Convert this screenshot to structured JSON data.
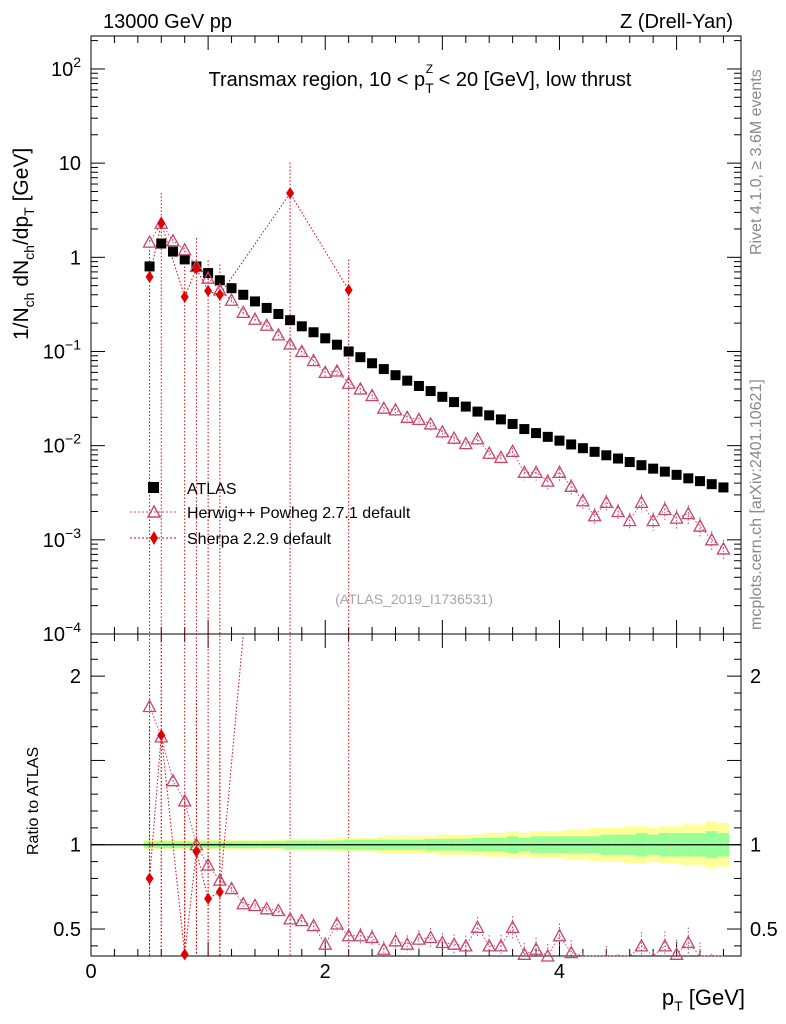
{
  "header": {
    "left": "13000 GeV pp",
    "right": "Z (Drell-Yan)"
  },
  "side_labels": {
    "rivet": "Rivet 4.1.0, ≥ 3.6M events",
    "mcplots": "mcplots.cern.ch [arXiv:2401.10621]"
  },
  "chart_data": {
    "type": "scatter",
    "title_parts": {
      "pre": "Transmax region, 10 < p",
      "sub": "T",
      "sup": "Z",
      "post": " < 20 [GeV], low thrust"
    },
    "xlabel": {
      "main": "p",
      "sub": "T",
      "unit": " [GeV]"
    },
    "ylabel": {
      "t1": "1/N",
      "s1": "ch",
      "t2": " dN",
      "s2": "ch",
      "t3": "/dp",
      "s3": "T",
      "t4": " [GeV]"
    },
    "ratio_ylabel": "Ratio to ATLAS",
    "watermark": "(ATLAS_2019_I1736531)",
    "xlim": [
      0,
      5.55
    ],
    "ylim_log10": [
      -4,
      2.35
    ],
    "ratio_ylim": [
      0.34,
      2.25
    ],
    "x_ticks": [
      {
        "v": 0,
        "label": "0"
      },
      {
        "v": 2,
        "label": "2"
      },
      {
        "v": 4,
        "label": "4"
      }
    ],
    "y_ticks": [
      {
        "e": 2,
        "base": "10",
        "exp": "2"
      },
      {
        "e": 1,
        "base": "10",
        "exp": ""
      },
      {
        "e": 0,
        "base": "1",
        "exp": ""
      },
      {
        "e": -1,
        "base": "10",
        "exp": "−1"
      },
      {
        "e": -2,
        "base": "10",
        "exp": "−2"
      },
      {
        "e": -3,
        "base": "10",
        "exp": "−3"
      },
      {
        "e": -4,
        "base": "10",
        "exp": "−4"
      }
    ],
    "ratio_ticks": [
      {
        "v": 0.5,
        "label": "0.5"
      },
      {
        "v": 1,
        "label": "1"
      },
      {
        "v": 2,
        "label": "2"
      }
    ],
    "legend": [
      {
        "name": "ATLAS",
        "color": "#000000",
        "marker": "square"
      },
      {
        "name": "Herwig++ Powheg 2.7.1 default",
        "color": "#c8456e",
        "marker": "triangle"
      },
      {
        "name": "Sherpa 2.2.9 default",
        "color": "#e00000",
        "marker": "diamond"
      }
    ],
    "x": [
      0.5,
      0.6,
      0.7,
      0.8,
      0.9,
      1.0,
      1.1,
      1.2,
      1.3,
      1.4,
      1.5,
      1.6,
      1.7,
      1.8,
      1.9,
      2.0,
      2.1,
      2.2,
      2.3,
      2.4,
      2.5,
      2.6,
      2.7,
      2.8,
      2.9,
      3.0,
      3.1,
      3.2,
      3.3,
      3.4,
      3.5,
      3.6,
      3.7,
      3.8,
      3.9,
      4.0,
      4.1,
      4.2,
      4.3,
      4.4,
      4.5,
      4.6,
      4.7,
      4.8,
      4.9,
      5.0,
      5.1,
      5.2,
      5.3,
      5.4
    ],
    "series": [
      {
        "name": "ATLAS",
        "values": [
          0.8,
          1.4,
          1.15,
          0.95,
          0.8,
          0.68,
          0.57,
          0.47,
          0.4,
          0.34,
          0.29,
          0.25,
          0.215,
          0.185,
          0.16,
          0.138,
          0.118,
          0.1,
          0.087,
          0.075,
          0.065,
          0.056,
          0.049,
          0.043,
          0.038,
          0.033,
          0.029,
          0.026,
          0.023,
          0.021,
          0.019,
          0.017,
          0.015,
          0.0136,
          0.0124,
          0.0113,
          0.0103,
          0.0094,
          0.0086,
          0.0079,
          0.0073,
          0.0067,
          0.0062,
          0.0057,
          0.0053,
          0.0049,
          0.0045,
          0.0042,
          0.0039,
          0.0036
        ]
      },
      {
        "name": "Herwig++ Powheg 2.7.1 default",
        "values": [
          1.45,
          2.3,
          1.5,
          1.2,
          0.8,
          0.6,
          0.45,
          0.35,
          0.26,
          0.22,
          0.19,
          0.15,
          0.12,
          0.1,
          0.08,
          0.06,
          0.062,
          0.046,
          0.04,
          0.034,
          0.025,
          0.024,
          0.02,
          0.019,
          0.017,
          0.014,
          0.012,
          0.0105,
          0.0118,
          0.0083,
          0.0075,
          0.0087,
          0.0052,
          0.0052,
          0.0042,
          0.0052,
          0.0037,
          0.0026,
          0.0018,
          0.0025,
          0.002,
          0.0016,
          0.0025,
          0.0016,
          0.0021,
          0.0017,
          0.0019,
          0.0014,
          0.001,
          0.0008
        ]
      },
      {
        "name": "Sherpa 2.2.9 default",
        "x": [
          0.5,
          0.6,
          0.8,
          0.9,
          1.0,
          1.1,
          1.7,
          2.2
        ],
        "values": [
          0.62,
          2.3,
          0.38,
          0.76,
          0.44,
          0.4,
          4.8,
          0.45
        ]
      }
    ],
    "ratio_herwig": [
      1.82,
      1.64,
      1.38,
      1.26,
      1.0,
      0.88,
      0.79,
      0.74,
      0.65,
      0.64,
      0.62,
      0.61,
      0.56,
      0.55,
      0.52,
      0.41,
      0.53,
      0.46,
      0.46,
      0.45,
      0.38,
      0.43,
      0.41,
      0.44,
      0.45,
      0.42,
      0.41,
      0.4,
      0.51,
      0.4,
      0.4,
      0.51,
      0.35,
      0.38,
      0.34,
      0.46,
      0.36,
      0.28,
      0.21,
      0.32,
      0.27,
      0.24,
      0.4,
      0.28,
      0.4,
      0.35,
      0.42,
      0.33,
      0.26,
      0.22
    ],
    "ratio_sherpa": {
      "x": [
        0.5,
        0.6,
        0.8,
        0.9,
        1.0,
        1.1
      ],
      "values": [
        0.8,
        1.65,
        0.35,
        0.96,
        0.68,
        0.72
      ]
    },
    "band_inner": [
      0.02,
      0.02,
      0.02,
      0.02,
      0.02,
      0.02,
      0.02,
      0.02,
      0.02,
      0.02,
      0.02,
      0.02,
      0.025,
      0.025,
      0.025,
      0.025,
      0.025,
      0.03,
      0.03,
      0.03,
      0.03,
      0.03,
      0.03,
      0.03,
      0.035,
      0.035,
      0.035,
      0.035,
      0.04,
      0.04,
      0.04,
      0.05,
      0.04,
      0.05,
      0.05,
      0.05,
      0.05,
      0.05,
      0.05,
      0.06,
      0.06,
      0.06,
      0.07,
      0.06,
      0.07,
      0.07,
      0.07,
      0.07,
      0.08,
      0.07
    ],
    "band_outer": [
      0.03,
      0.03,
      0.03,
      0.03,
      0.03,
      0.03,
      0.03,
      0.03,
      0.03,
      0.03,
      0.03,
      0.03,
      0.035,
      0.035,
      0.035,
      0.035,
      0.04,
      0.04,
      0.04,
      0.04,
      0.05,
      0.05,
      0.05,
      0.05,
      0.05,
      0.06,
      0.06,
      0.06,
      0.06,
      0.07,
      0.07,
      0.08,
      0.07,
      0.08,
      0.08,
      0.08,
      0.09,
      0.09,
      0.1,
      0.1,
      0.1,
      0.11,
      0.11,
      0.1,
      0.11,
      0.11,
      0.12,
      0.12,
      0.14,
      0.13
    ]
  }
}
